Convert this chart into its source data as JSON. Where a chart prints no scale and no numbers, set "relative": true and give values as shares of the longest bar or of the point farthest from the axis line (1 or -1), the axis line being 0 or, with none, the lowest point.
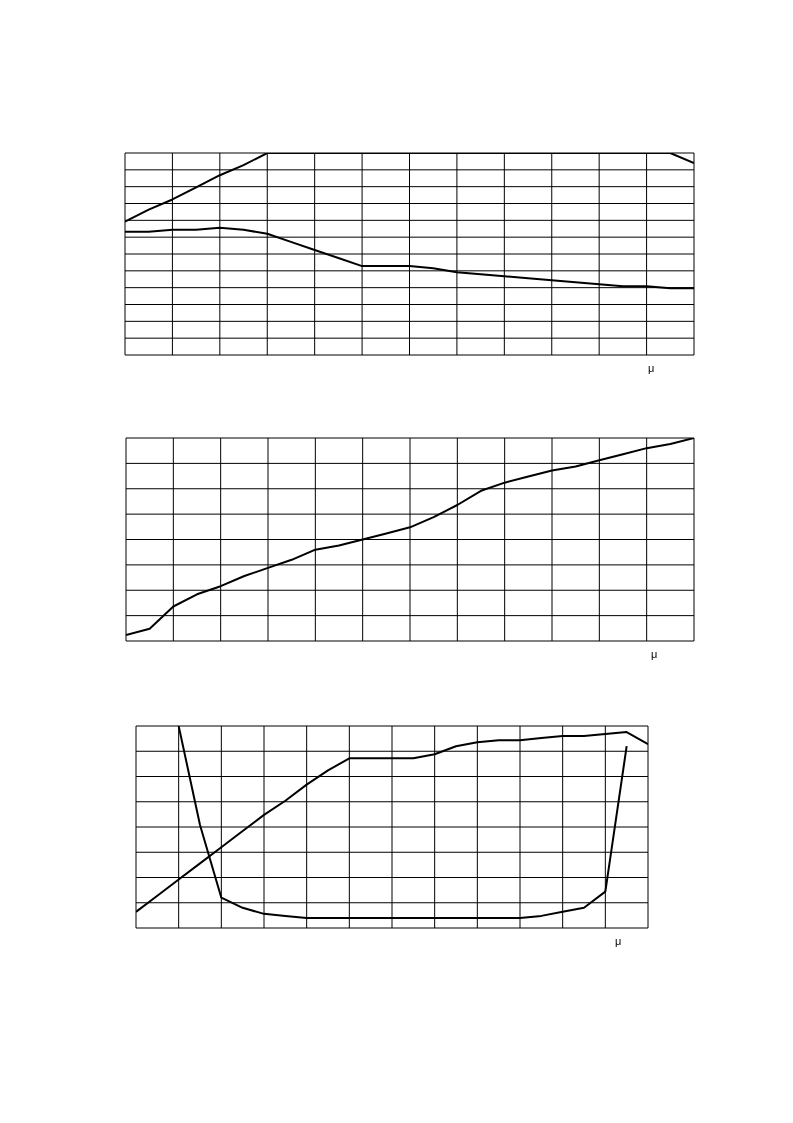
{
  "chart_data": [
    {
      "type": "line",
      "relative": true,
      "grid": true,
      "xlabel": "μ",
      "categories": [
        null,
        null,
        null,
        null,
        null,
        null,
        null,
        null,
        null,
        null,
        null,
        null,
        null,
        null,
        null,
        null,
        null,
        null,
        null,
        null,
        null,
        null,
        null,
        null,
        null
      ],
      "series": [
        {
          "color": "#000000",
          "values": [
            0.66,
            0.72,
            0.77,
            0.83,
            0.89,
            0.94,
            1,
            1,
            1,
            1,
            1,
            1,
            1,
            1,
            1,
            1,
            1,
            1,
            1,
            1,
            1,
            1,
            1,
            1,
            0.95
          ]
        },
        {
          "color": "#000000",
          "values": [
            0.61,
            0.61,
            0.62,
            0.62,
            0.63,
            0.62,
            0.6,
            0.56,
            0.52,
            0.48,
            0.44,
            0.44,
            0.44,
            0.43,
            0.41,
            0.4,
            0.39,
            0.38,
            0.37,
            0.36,
            0.35,
            0.34,
            0.34,
            0.33,
            0.33
          ]
        }
      ]
    },
    {
      "type": "line",
      "relative": true,
      "grid": true,
      "xlabel": "μ",
      "categories": [
        null,
        null,
        null,
        null,
        null,
        null,
        null,
        null,
        null,
        null,
        null,
        null,
        null,
        null,
        null,
        null,
        null,
        null,
        null,
        null,
        null,
        null,
        null,
        null,
        null
      ],
      "series": [
        {
          "color": "#000000",
          "values": [
            0.03,
            0.06,
            0.17,
            0.23,
            0.27,
            0.32,
            0.36,
            0.4,
            0.45,
            0.47,
            0.5,
            0.53,
            0.56,
            0.61,
            0.67,
            0.74,
            0.78,
            0.81,
            0.84,
            0.86,
            0.89,
            0.92,
            0.95,
            0.97,
            1
          ]
        }
      ]
    },
    {
      "type": "line",
      "relative": true,
      "grid": true,
      "xlabel": "μ",
      "categories": [
        null,
        null,
        null,
        null,
        null,
        null,
        null,
        null,
        null,
        null,
        null,
        null,
        null,
        null,
        null,
        null,
        null,
        null,
        null,
        null,
        null,
        null,
        null,
        null,
        null
      ],
      "series": [
        {
          "color": "#000000",
          "values": [
            0.08,
            0.16,
            0.24,
            0.32,
            0.4,
            0.48,
            0.56,
            0.63,
            0.71,
            0.78,
            0.84,
            0.84,
            0.84,
            0.84,
            0.86,
            0.9,
            0.92,
            0.93,
            0.93,
            0.94,
            0.95,
            0.95,
            0.96,
            0.97,
            0.91
          ]
        },
        {
          "color": "#000000",
          "values": [
            null,
            null,
            1,
            0.51,
            0.15,
            0.1,
            0.07,
            0.06,
            0.05,
            0.05,
            0.05,
            0.05,
            0.05,
            0.05,
            0.05,
            0.05,
            0.05,
            0.05,
            0.05,
            0.06,
            0.08,
            0.1,
            0.18,
            0.9,
            null
          ]
        }
      ]
    }
  ]
}
